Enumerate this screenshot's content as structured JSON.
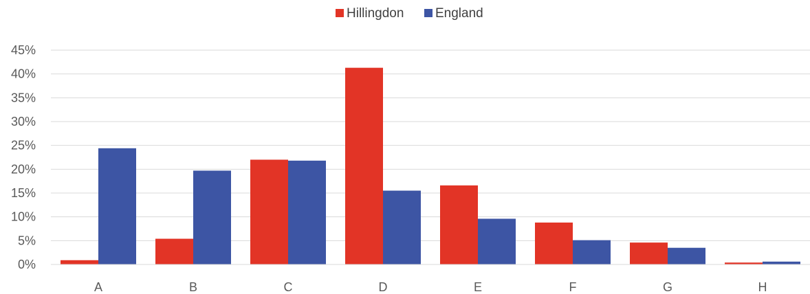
{
  "chart_data": {
    "type": "bar",
    "categories": [
      "A",
      "B",
      "C",
      "D",
      "E",
      "F",
      "G",
      "H"
    ],
    "series": [
      {
        "name": "Hillingdon",
        "color": "#e23426",
        "values": [
          0.9,
          5.4,
          22.0,
          41.3,
          16.6,
          8.8,
          4.6,
          0.4
        ]
      },
      {
        "name": "England",
        "color": "#3d55a4",
        "values": [
          24.4,
          19.7,
          21.8,
          15.5,
          9.6,
          5.1,
          3.5,
          0.6
        ]
      }
    ],
    "yticks": [
      "0%",
      "5%",
      "10%",
      "15%",
      "20%",
      "25%",
      "30%",
      "35%",
      "40%",
      "45%"
    ],
    "ylim": [
      0,
      45
    ],
    "grid": true,
    "legend_position": "top-center"
  }
}
